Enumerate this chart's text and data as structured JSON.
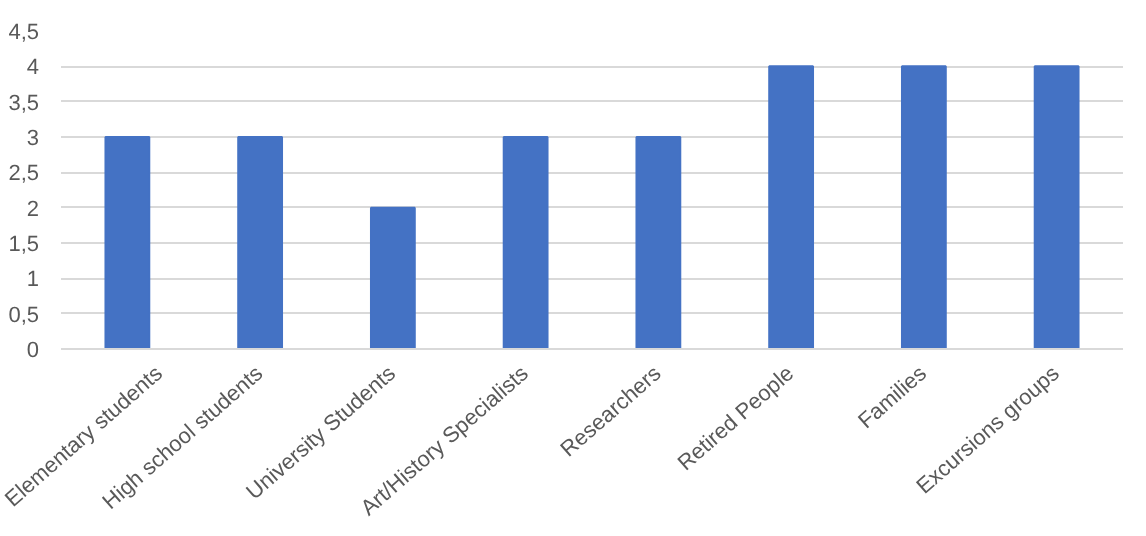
{
  "chart_data": {
    "type": "bar",
    "categories": [
      "Elementary students",
      "High school students",
      "University Students",
      "Art/History Specialists",
      "Researchers",
      "Retired People",
      "Families",
      "Excursions groups"
    ],
    "values": [
      3,
      3,
      2,
      3,
      3,
      4,
      4,
      4
    ],
    "color": "#4472c4",
    "ylim": [
      0,
      4.5
    ],
    "yticks": [
      0,
      {
        "value": 0.5,
        "label": "0,5"
      },
      1,
      {
        "value": 1.5,
        "label": "1,5"
      },
      2,
      {
        "value": 2.5,
        "label": "2,5"
      },
      3,
      {
        "value": 3.5,
        "label": "3,5"
      },
      4,
      {
        "value": 4.5,
        "label": "4,5"
      }
    ],
    "grid": "y"
  }
}
